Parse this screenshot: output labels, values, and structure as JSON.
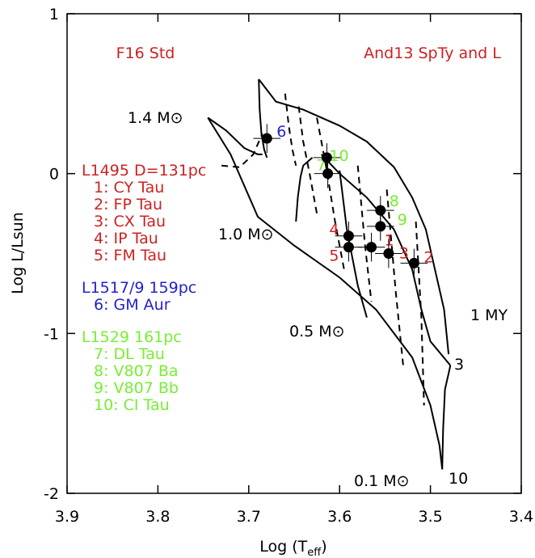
{
  "chart_data": {
    "type": "hr-diagram",
    "xlabel": {
      "main": "Log (T",
      "sub": "eff",
      "end": ")"
    },
    "ylabel": "Log L/Lsun",
    "xlim": [
      3.9,
      3.4
    ],
    "ylim": [
      -2,
      1
    ],
    "xticks": [
      3.9,
      3.8,
      3.7,
      3.6,
      3.5,
      3.4
    ],
    "yticks": [
      1,
      0,
      -1,
      -2
    ],
    "panel_titles": [
      {
        "text": "F16 Std",
        "color": "#cc2222"
      },
      {
        "text": "And13 SpTy and L",
        "color": "#cc2222"
      }
    ],
    "annotations": [
      "1.4 M⊙",
      "1.0 M⊙",
      "0.5 M⊙",
      "0.1 M⊙",
      "1 MY",
      "3",
      "10"
    ],
    "legend_groups": [
      {
        "name": "L1495 D=131pc",
        "color": "#cc2222",
        "items": [
          "1: CY Tau",
          "2: FP Tau",
          "3: CX Tau",
          "4: IP Tau",
          "5: FM Tau"
        ]
      },
      {
        "name": "L1517/9 159pc",
        "color": "#2222cc",
        "items": [
          "6: GM Aur"
        ]
      },
      {
        "name": "L1529 161pc",
        "color": "#77ee33",
        "items": [
          "7: DL Tau",
          "8: V807 Ba",
          "9: V807 Bb",
          "10: CI Tau"
        ]
      }
    ],
    "points": {
      "labels": [
        "1",
        "2",
        "3",
        "4",
        "5",
        "6",
        "7",
        "8",
        "9",
        "10"
      ],
      "label_colors": [
        "#cc2222",
        "#cc2222",
        "#cc2222",
        "#cc2222",
        "#cc2222",
        "#2222cc",
        "#77ee33",
        "#77ee33",
        "#77ee33",
        "#77ee33"
      ],
      "x": [
        3.565,
        3.518,
        3.546,
        3.59,
        3.59,
        3.68,
        3.613,
        3.555,
        3.555,
        3.614
      ],
      "y": [
        -0.46,
        -0.56,
        -0.5,
        -0.39,
        -0.46,
        0.22,
        0.0,
        -0.23,
        -0.33,
        0.1
      ],
      "xerr": [
        0.015,
        0.015,
        0.015,
        0.015,
        0.015,
        0.015,
        0.015,
        0.015,
        0.015,
        0.015
      ],
      "yerr": [
        0.09,
        0.09,
        0.09,
        0.09,
        0.09,
        0.09,
        0.09,
        0.09,
        0.09,
        0.09
      ]
    },
    "solid_curves": [
      {
        "x": [
          3.745,
          3.725,
          3.705,
          3.69,
          3.685
        ],
        "y": [
          0.35,
          0.27,
          0.16,
          0.12,
          0.12
        ]
      },
      {
        "x": [
          3.689,
          3.688,
          3.686,
          3.683,
          3.68
        ],
        "y": [
          0.59,
          0.4,
          0.25,
          0.15,
          0.1
        ]
      },
      {
        "x": [
          3.689,
          3.67,
          3.64,
          3.6,
          3.57,
          3.54,
          3.52,
          3.505,
          3.495,
          3.485,
          3.48
        ],
        "y": [
          0.59,
          0.45,
          0.4,
          0.3,
          0.2,
          0.04,
          -0.15,
          -0.35,
          -0.6,
          -0.85,
          -1.13
        ]
      },
      {
        "x": [
          3.745,
          3.72,
          3.69,
          3.65,
          3.6,
          3.56,
          3.52,
          3.5,
          3.49,
          3.487
        ],
        "y": [
          0.35,
          0.12,
          -0.27,
          -0.45,
          -0.65,
          -0.85,
          -1.15,
          -1.45,
          -1.7,
          -1.85
        ]
      },
      {
        "x": [
          3.487,
          3.486,
          3.484,
          3.48,
          3.478
        ],
        "y": [
          -1.85,
          -1.6,
          -1.35,
          -1.25,
          -1.2
        ]
      },
      {
        "x": [
          3.62,
          3.6,
          3.57,
          3.54,
          3.52,
          3.51,
          3.5,
          3.478
        ],
        "y": [
          0.12,
          0.0,
          -0.15,
          -0.35,
          -0.6,
          -0.85,
          -1.05,
          -1.2
        ]
      },
      {
        "x": [
          3.648,
          3.646,
          3.643,
          3.64,
          3.63
        ],
        "y": [
          -0.3,
          -0.15,
          -0.02,
          0.05,
          0.1
        ]
      },
      {
        "x": [
          3.6,
          3.592,
          3.58,
          3.57
        ],
        "y": [
          0.02,
          -0.35,
          -0.7,
          -0.9
        ]
      }
    ],
    "dashed_curves": [
      {
        "x": [
          3.66,
          3.656,
          3.652,
          3.648
        ],
        "y": [
          0.5,
          0.3,
          0.15,
          0.05
        ]
      },
      {
        "x": [
          3.645,
          3.64,
          3.633,
          3.625
        ],
        "y": [
          0.42,
          0.2,
          0.0,
          -0.25
        ]
      },
      {
        "x": [
          3.625,
          3.615,
          3.605,
          3.595
        ],
        "y": [
          0.35,
          0.05,
          -0.3,
          -0.6
        ]
      },
      {
        "x": [
          3.58,
          3.572,
          3.565
        ],
        "y": [
          0.05,
          -0.45,
          -0.8
        ]
      },
      {
        "x": [
          3.548,
          3.538,
          3.53
        ],
        "y": [
          -0.1,
          -0.75,
          -1.2
        ]
      },
      {
        "x": [
          3.516,
          3.51,
          3.507
        ],
        "y": [
          -0.3,
          -0.9,
          -1.45
        ]
      },
      {
        "x": [
          3.73,
          3.71,
          3.695,
          3.685
        ],
        "y": [
          0.05,
          0.04,
          0.12,
          0.25
        ]
      }
    ]
  }
}
